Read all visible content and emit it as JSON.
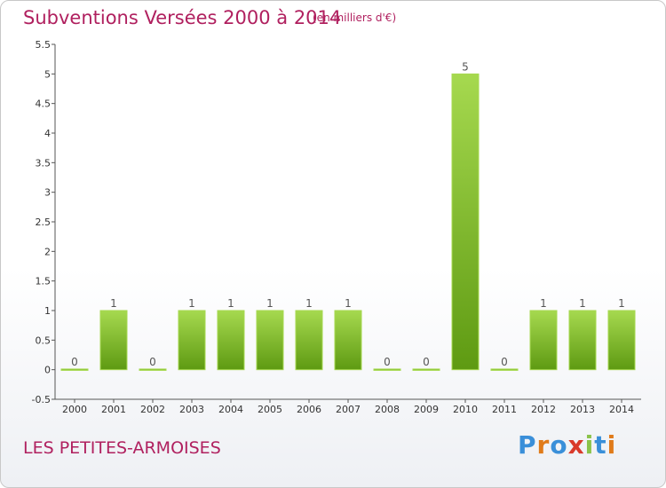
{
  "header": {
    "title": "Subventions Versées 2000 à 2014",
    "unit": "(en milliers d'€)"
  },
  "footer": {
    "commune": "LES PETITES-ARMOISES",
    "logo": [
      "P",
      "r",
      "o",
      "x",
      "i",
      "t",
      "i"
    ],
    "logo_colors": [
      "#3a8fd9",
      "#e07b1a",
      "#3a8fd9",
      "#d93a2b",
      "#8bc34a",
      "#3a8fd9",
      "#e07b1a"
    ]
  },
  "colors": {
    "bar_light": "#a6d94f",
    "bar_dark": "#5e9a12",
    "axis": "#555555",
    "grid": "#cccccc"
  },
  "chart_data": {
    "type": "bar",
    "title": "Subventions Versées 2000 à 2014",
    "subtitle": "(en milliers d'€)",
    "categories": [
      "2000",
      "2001",
      "2002",
      "2003",
      "2004",
      "2005",
      "2006",
      "2007",
      "2008",
      "2009",
      "2010",
      "2011",
      "2012",
      "2013",
      "2014"
    ],
    "values": [
      0,
      1,
      0,
      1,
      1,
      1,
      1,
      1,
      0,
      0,
      5,
      0,
      1,
      1,
      1
    ],
    "data_labels": [
      "0",
      "1",
      "0",
      "1",
      "1",
      "1",
      "1",
      "1",
      "0",
      "0",
      "5",
      "0",
      "1",
      "1",
      "1"
    ],
    "yticks": [
      "-0.5",
      "0",
      "0.5",
      "1",
      "1.5",
      "2",
      "2.5",
      "3",
      "3.5",
      "4",
      "4.5",
      "5",
      "5.5"
    ],
    "ylim": [
      -0.5,
      5.5
    ],
    "xlabel": "",
    "ylabel": "",
    "grid": false,
    "legend": "none"
  }
}
